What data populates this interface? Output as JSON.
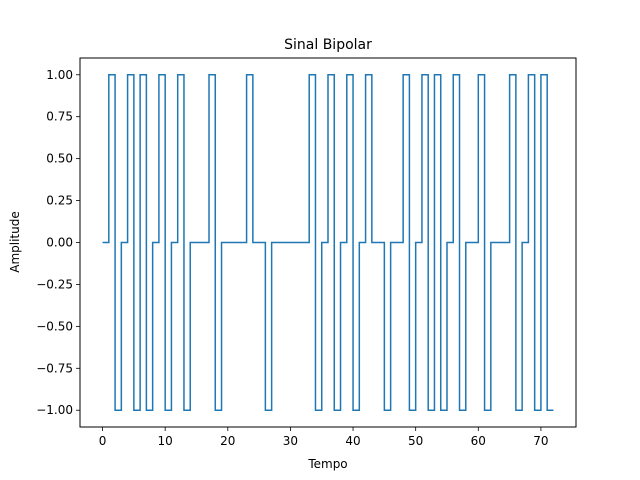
{
  "chart_data": {
    "type": "line",
    "title": "Sinal Bipolar",
    "xlabel": "Tempo",
    "ylabel": "Amplitude",
    "xlim": [
      -3.6,
      75.6
    ],
    "ylim": [
      -1.1,
      1.1
    ],
    "xticks": [
      0,
      10,
      20,
      30,
      40,
      50,
      60,
      70
    ],
    "xtick_labels": [
      "0",
      "10",
      "20",
      "30",
      "40",
      "50",
      "60",
      "70"
    ],
    "yticks": [
      -1.0,
      -0.75,
      -0.5,
      -0.25,
      0.0,
      0.25,
      0.5,
      0.75,
      1.0
    ],
    "ytick_labels": [
      "−1.00",
      "−0.75",
      "−0.50",
      "−0.25",
      "0.00",
      "0.25",
      "0.50",
      "0.75",
      "1.00"
    ],
    "grid": false,
    "series": [
      {
        "color": "#1f77b4",
        "step": "post",
        "x": [
          0,
          1,
          2,
          3,
          4,
          5,
          6,
          7,
          8,
          9,
          10,
          11,
          12,
          13,
          14,
          15,
          16,
          17,
          18,
          19,
          20,
          21,
          22,
          23,
          24,
          25,
          26,
          27,
          28,
          29,
          30,
          31,
          32,
          33,
          34,
          35,
          36,
          37,
          38,
          39,
          40,
          41,
          42,
          43,
          44,
          45,
          46,
          47,
          48,
          49,
          50,
          51,
          52,
          53,
          54,
          55,
          56,
          57,
          58,
          59,
          60,
          61,
          62,
          63,
          64,
          65,
          66,
          67,
          68,
          69,
          70,
          71,
          72
        ],
        "y": [
          0,
          1,
          -1,
          0,
          1,
          -1,
          1,
          -1,
          0,
          1,
          -1,
          0,
          1,
          -1,
          0,
          0,
          0,
          1,
          -1,
          0,
          0,
          0,
          0,
          1,
          0,
          0,
          -1,
          0,
          0,
          0,
          0,
          0,
          0,
          1,
          -1,
          0,
          1,
          -1,
          0,
          1,
          -1,
          0,
          1,
          0,
          0,
          -1,
          0,
          0,
          1,
          -1,
          0,
          1,
          -1,
          1,
          -1,
          0,
          1,
          -1,
          0,
          0,
          1,
          -1,
          0,
          0,
          0,
          1,
          -1,
          0,
          1,
          -1,
          1,
          -1,
          -1
        ]
      }
    ]
  }
}
